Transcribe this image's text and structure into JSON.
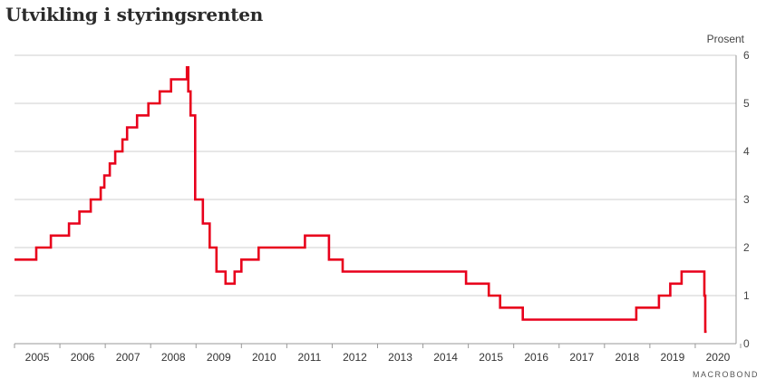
{
  "title": "Utvikling i styringsrenten",
  "unit_label": "Prosent",
  "source_label": "MACROBOND",
  "colors": {
    "line": "#e8001c",
    "grid": "#cfcfcf",
    "text": "#333333"
  },
  "chart_data": {
    "type": "line",
    "title": "Utvikling i styringsrenten",
    "ylabel": "Prosent",
    "xlim": [
      2004.5,
      2020.4
    ],
    "ylim": [
      0,
      6
    ],
    "yticks": [
      0,
      1,
      2,
      3,
      4,
      5,
      6
    ],
    "xtick_labels": [
      "2005",
      "2006",
      "2007",
      "2008",
      "2009",
      "2010",
      "2011",
      "2012",
      "2013",
      "2014",
      "2015",
      "2016",
      "2017",
      "2018",
      "2019",
      "2020"
    ],
    "grid": true,
    "series": [
      {
        "step": true,
        "x": [
          2004.5,
          2004.98,
          2005.3,
          2005.7,
          2005.93,
          2006.18,
          2006.4,
          2006.48,
          2006.6,
          2006.72,
          2006.88,
          2006.98,
          2007.2,
          2007.45,
          2007.7,
          2007.95,
          2008.3,
          2008.33,
          2008.38,
          2008.48,
          2008.65,
          2008.8,
          2008.95,
          2009.15,
          2009.35,
          2009.5,
          2009.88,
          2010.9,
          2011.43,
          2011.73,
          2014.45,
          2014.95,
          2015.2,
          2015.7,
          2018.2,
          2018.7,
          2018.95,
          2019.2,
          2019.7,
          2019.72,
          2019.75
        ],
        "y": [
          1.75,
          2.0,
          2.25,
          2.5,
          2.75,
          3.0,
          3.25,
          3.5,
          3.75,
          4.0,
          4.25,
          4.5,
          4.75,
          5.0,
          5.25,
          5.5,
          5.75,
          5.25,
          4.75,
          3.0,
          2.5,
          2.0,
          1.5,
          1.25,
          1.5,
          1.75,
          2.0,
          2.25,
          1.75,
          1.5,
          1.25,
          1.0,
          0.75,
          0.5,
          0.75,
          1.0,
          1.25,
          1.5,
          1.0,
          0.25,
          0.25
        ]
      }
    ]
  }
}
